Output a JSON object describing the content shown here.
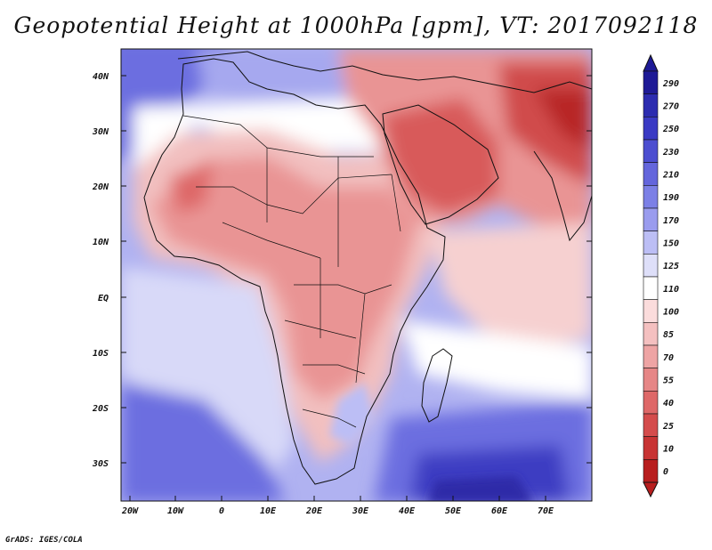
{
  "title": "Geopotential Height at 1000hPa [gpm], VT: 2017092118",
  "footer": "GrADS: IGES/COLA",
  "lat_labels": [
    "40N",
    "30N",
    "20N",
    "10N",
    "EQ",
    "10S",
    "20S",
    "30S"
  ],
  "lon_labels": [
    "20W",
    "10W",
    "0",
    "10E",
    "20E",
    "30E",
    "40E",
    "50E",
    "60E",
    "70E"
  ],
  "colorbar": {
    "levels": [
      "290",
      "270",
      "250",
      "230",
      "210",
      "190",
      "170",
      "150",
      "125",
      "110",
      "100",
      "85",
      "70",
      "55",
      "40",
      "25",
      "10",
      "0"
    ],
    "colors": [
      "#1e1a96",
      "#2c2cb0",
      "#3a3ac4",
      "#4c4ed0",
      "#6466dc",
      "#7c80e6",
      "#9a9cee",
      "#bcbef5",
      "#dedff9",
      "#ffffff",
      "#fbdcdc",
      "#f4c0c0",
      "#eea4a4",
      "#e68686",
      "#de6868",
      "#d44c4c",
      "#c83434",
      "#b81e1e"
    ]
  },
  "field_colors": {
    "ocean_high": "#6c6ee0",
    "ocean_mid": "#a6a8ef",
    "ocean_light": "#d8d9f8",
    "neutral": "#ffffff",
    "land_low": "#f2c0c0",
    "land_mid": "#e99494",
    "land_deep": "#d85a5a",
    "deepest": "#b82828",
    "southern_low": "#2e2aa8"
  }
}
